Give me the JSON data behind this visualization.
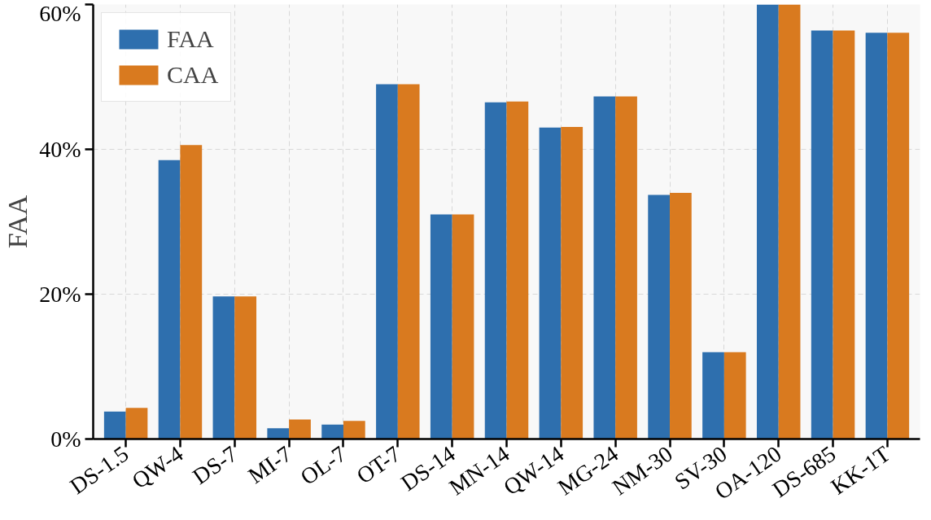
{
  "chart_data": {
    "type": "bar",
    "ylabel": "FAA",
    "categories": [
      "DS-1.5",
      "QW-4",
      "DS-7",
      "MI-7",
      "OL-7",
      "OT-7",
      "DS-14",
      "MN-14",
      "QW-14",
      "MG-24",
      "NM-30",
      "SV-30",
      "OA-120",
      "DS-685",
      "KK-1T"
    ],
    "series": [
      {
        "name": "FAA",
        "color": "#2e6fae",
        "values": [
          3.8,
          38.5,
          19.7,
          1.5,
          2.0,
          49.0,
          31.0,
          46.5,
          43.0,
          47.3,
          33.7,
          12.0,
          60.0,
          56.4,
          56.1
        ]
      },
      {
        "name": "CAA",
        "color": "#d97a1f",
        "values": [
          4.3,
          40.6,
          19.7,
          2.7,
          2.5,
          49.0,
          31.0,
          46.6,
          43.1,
          47.3,
          34.0,
          12.0,
          60.0,
          56.4,
          56.1
        ]
      }
    ],
    "ylim": [
      0,
      60
    ],
    "yticks": [
      {
        "value": 0,
        "label": "0%"
      },
      {
        "value": 20,
        "label": "20%"
      },
      {
        "value": 40,
        "label": "40%"
      },
      {
        "value": 60,
        "label": "60%"
      }
    ],
    "grid": true,
    "legend": "top left"
  }
}
